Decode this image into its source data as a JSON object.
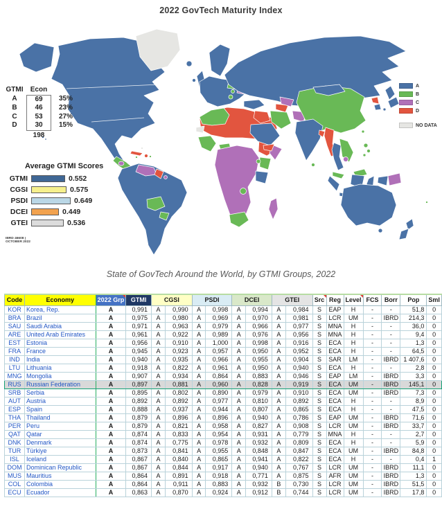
{
  "title": "2022 GovTech Maturity Index",
  "caption": "State of GovTech Around the World, by GTMI Groups, 2022",
  "map_credit": {
    "line1": "IBRD 46608 |",
    "line2": "OCTOBER 2022"
  },
  "table": {
    "headers": {
      "code": "Code",
      "economy": "Economy",
      "grp": "2022 Grp",
      "gtmi": "GTMI",
      "cgsi": "CGSI",
      "psdi": "PSDI",
      "dcei": "DCEI",
      "gtei": "GTEI",
      "src": "Src",
      "reg": "Reg",
      "level": "Level",
      "fcs": "FCS",
      "borr": "Borr",
      "pop": "Pop",
      "sml": "Sml"
    }
  },
  "chart_data": [
    {
      "type": "choropleth_map",
      "title": "2022 GovTech Maturity Index",
      "legend": [
        "A",
        "B",
        "C",
        "D"
      ],
      "no_data_label": "NO DATA",
      "colors": {
        "A": "#4a72a6",
        "B": "#69b956",
        "C": "#b070b8",
        "D": "#e2553f",
        "NO_DATA": "#e6e6e3"
      },
      "group_counts": {
        "col1": "GTMI",
        "col2": "Econ",
        "categories": [
          "A",
          "B",
          "C",
          "D"
        ],
        "economies": [
          69,
          46,
          53,
          30
        ],
        "share": [
          "35%",
          "23%",
          "27%",
          "15%"
        ],
        "total": 198
      }
    },
    {
      "type": "bar",
      "title": "Average GTMI Scores",
      "categories": [
        "GTMI",
        "CGSI",
        "PSDI",
        "DCEI",
        "GTEI"
      ],
      "values": [
        0.552,
        0.575,
        0.649,
        0.449,
        0.536
      ],
      "xlim": [
        0,
        1
      ],
      "legend_position": "overlay-left",
      "colors": [
        "#3f6795",
        "#f6f08d",
        "#bad7e6",
        "#f2a24e",
        "#dcdcdc"
      ]
    },
    {
      "type": "table",
      "title": "State of GovTech Around the World, by GTMI Groups, 2022",
      "columns": [
        "Code",
        "Economy",
        "2022 Grp",
        "GTMI",
        "CGSI Grp",
        "CGSI",
        "PSDI Grp",
        "PSDI",
        "DCEI Grp",
        "DCEI",
        "GTEI Grp",
        "GTEI",
        "Src",
        "Reg",
        "Level",
        "FCS",
        "Borr",
        "Pop",
        "Sml"
      ],
      "highlight_index": 9,
      "rows": [
        [
          "KOR",
          "Korea, Rep.",
          "A",
          "0,991",
          "A",
          "0,990",
          "A",
          "0,998",
          "A",
          "0,994",
          "A",
          "0,984",
          "S",
          "EAP",
          "H",
          "-",
          "-",
          "51,8",
          "0"
        ],
        [
          "BRA",
          "Brazil",
          "A",
          "0,975",
          "A",
          "0,980",
          "A",
          "0,969",
          "A",
          "0,970",
          "A",
          "0,981",
          "S",
          "LCR",
          "UM",
          "-",
          "IBRD",
          "214,3",
          "0"
        ],
        [
          "SAU",
          "Saudi Arabia",
          "A",
          "0,971",
          "A",
          "0,963",
          "A",
          "0,979",
          "A",
          "0,966",
          "A",
          "0,977",
          "S",
          "MNA",
          "H",
          "-",
          "-",
          "36,0",
          "0"
        ],
        [
          "ARE",
          "United Arab Emirates",
          "A",
          "0,961",
          "A",
          "0,922",
          "A",
          "0,989",
          "A",
          "0,976",
          "A",
          "0,956",
          "S",
          "MNA",
          "H",
          "-",
          "-",
          "9,4",
          "0"
        ],
        [
          "EST",
          "Estonia",
          "A",
          "0,956",
          "A",
          "0,910",
          "A",
          "1,000",
          "A",
          "0,998",
          "A",
          "0,916",
          "S",
          "ECA",
          "H",
          "-",
          "-",
          "1,3",
          "0"
        ],
        [
          "FRA",
          "France",
          "A",
          "0,945",
          "A",
          "0,923",
          "A",
          "0,957",
          "A",
          "0,950",
          "A",
          "0,952",
          "S",
          "ECA",
          "H",
          "-",
          "-",
          "64,5",
          "0"
        ],
        [
          "IND",
          "India",
          "A",
          "0,940",
          "A",
          "0,935",
          "A",
          "0,966",
          "A",
          "0,955",
          "A",
          "0,904",
          "S",
          "SAR",
          "LM",
          "-",
          "IBRD",
          "1 407,6",
          "0"
        ],
        [
          "LTU",
          "Lithuania",
          "A",
          "0,918",
          "A",
          "0,822",
          "A",
          "0,961",
          "A",
          "0,950",
          "A",
          "0,940",
          "S",
          "ECA",
          "H",
          "-",
          "-",
          "2,8",
          "0"
        ],
        [
          "MNG",
          "Mongolia",
          "A",
          "0,907",
          "A",
          "0,934",
          "A",
          "0,864",
          "A",
          "0,883",
          "A",
          "0,946",
          "S",
          "EAP",
          "LM",
          "-",
          "IBRD",
          "3,3",
          "0"
        ],
        [
          "RUS",
          "Russian Federation",
          "A",
          "0,897",
          "A",
          "0,881",
          "A",
          "0,960",
          "A",
          "0,828",
          "A",
          "0,919",
          "S",
          "ECA",
          "UM",
          "-",
          "IBRD",
          "145,1",
          "0"
        ],
        [
          "SRB",
          "Serbia",
          "A",
          "0,895",
          "A",
          "0,802",
          "A",
          "0,890",
          "A",
          "0,979",
          "A",
          "0,910",
          "S",
          "ECA",
          "UM",
          "-",
          "IBRD",
          "7,3",
          "0"
        ],
        [
          "AUT",
          "Austria",
          "A",
          "0,892",
          "A",
          "0,892",
          "A",
          "0,977",
          "A",
          "0,810",
          "A",
          "0,892",
          "S",
          "ECA",
          "H",
          "-",
          "-",
          "8,9",
          "0"
        ],
        [
          "ESP",
          "Spain",
          "A",
          "0,888",
          "A",
          "0,937",
          "A",
          "0,944",
          "A",
          "0,807",
          "A",
          "0,865",
          "S",
          "ECA",
          "H",
          "-",
          "-",
          "47,5",
          "0"
        ],
        [
          "THA",
          "Thailand",
          "A",
          "0,879",
          "A",
          "0,896",
          "A",
          "0,896",
          "A",
          "0,940",
          "A",
          "0,786",
          "S",
          "EAP",
          "UM",
          "-",
          "IBRD",
          "71,6",
          "0"
        ],
        [
          "PER",
          "Peru",
          "A",
          "0,879",
          "A",
          "0,821",
          "A",
          "0,958",
          "A",
          "0,827",
          "A",
          "0,908",
          "S",
          "LCR",
          "UM",
          "-",
          "IBRD",
          "33,7",
          "0"
        ],
        [
          "QAT",
          "Qatar",
          "A",
          "0,874",
          "A",
          "0,833",
          "A",
          "0,954",
          "A",
          "0,931",
          "A",
          "0,779",
          "S",
          "MNA",
          "H",
          "-",
          "-",
          "2,7",
          "0"
        ],
        [
          "DNK",
          "Denmark",
          "A",
          "0,874",
          "A",
          "0,775",
          "A",
          "0,978",
          "A",
          "0,932",
          "A",
          "0,809",
          "S",
          "ECA",
          "H",
          "-",
          "-",
          "5,9",
          "0"
        ],
        [
          "TUR",
          "Türkiye",
          "A",
          "0,873",
          "A",
          "0,841",
          "A",
          "0,955",
          "A",
          "0,848",
          "A",
          "0,847",
          "S",
          "ECA",
          "UM",
          "-",
          "IBRD",
          "84,8",
          "0"
        ],
        [
          "ISL",
          "Iceland",
          "A",
          "0,867",
          "A",
          "0,840",
          "A",
          "0,865",
          "A",
          "0,941",
          "A",
          "0,822",
          "S",
          "ECA",
          "H",
          "-",
          "-",
          "0,4",
          "1"
        ],
        [
          "DOM",
          "Dominican Republic",
          "A",
          "0,867",
          "A",
          "0,844",
          "A",
          "0,917",
          "A",
          "0,940",
          "A",
          "0,767",
          "S",
          "LCR",
          "UM",
          "-",
          "IBRD",
          "11,1",
          "0"
        ],
        [
          "MUS",
          "Mauritius",
          "A",
          "0,864",
          "A",
          "0,891",
          "A",
          "0,918",
          "A",
          "0,771",
          "A",
          "0,875",
          "S",
          "AFR",
          "UM",
          "-",
          "IBRD",
          "1,3",
          "0"
        ],
        [
          "COL",
          "Colombia",
          "A",
          "0,864",
          "A",
          "0,911",
          "A",
          "0,883",
          "A",
          "0,932",
          "B",
          "0,730",
          "S",
          "LCR",
          "UM",
          "-",
          "IBRD",
          "51,5",
          "0"
        ],
        [
          "ECU",
          "Ecuador",
          "A",
          "0,863",
          "A",
          "0,870",
          "A",
          "0,924",
          "A",
          "0,912",
          "B",
          "0,744",
          "S",
          "LCR",
          "UM",
          "-",
          "IBRD",
          "17,8",
          "0"
        ]
      ]
    }
  ]
}
